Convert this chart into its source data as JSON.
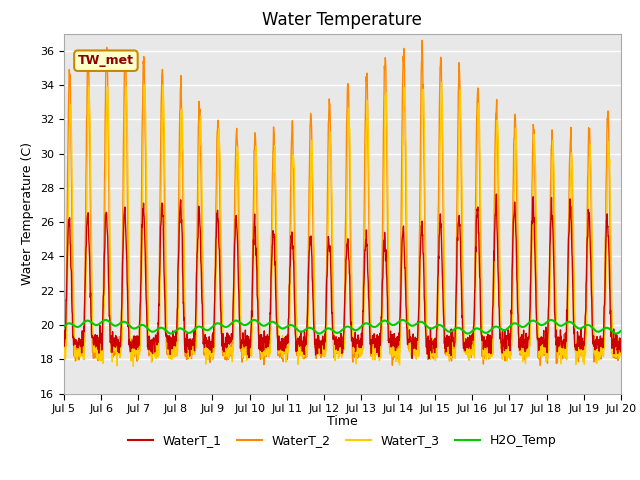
{
  "title": "Water Temperature",
  "xlabel": "Time",
  "ylabel": "Water Temperature (C)",
  "ylim": [
    16,
    37
  ],
  "yticks": [
    16,
    18,
    20,
    22,
    24,
    26,
    28,
    30,
    32,
    34,
    36
  ],
  "xtick_labels": [
    "Jul 5",
    "Jul 6",
    "Jul 7",
    "Jul 8",
    "Jul 9",
    "Jul 10",
    "Jul 11",
    "Jul 12",
    "Jul 13",
    "Jul 14",
    "Jul 15",
    "Jul 16",
    "Jul 17",
    "Jul 18",
    "Jul 19",
    "Jul 20"
  ],
  "xtick_positions": [
    0,
    1,
    2,
    3,
    4,
    5,
    6,
    7,
    8,
    9,
    10,
    11,
    12,
    13,
    14,
    15
  ],
  "series_colors": [
    "#cc0000",
    "#ff8800",
    "#ffcc00",
    "#00cc00"
  ],
  "series_names": [
    "WaterT_1",
    "WaterT_2",
    "WaterT_3",
    "H2O_Temp"
  ],
  "annotation_text": "TW_met",
  "bg_color": "#e8e8e8",
  "grid_color": "white",
  "title_fontsize": 12,
  "label_fontsize": 9,
  "tick_fontsize": 8,
  "legend_fontsize": 9
}
